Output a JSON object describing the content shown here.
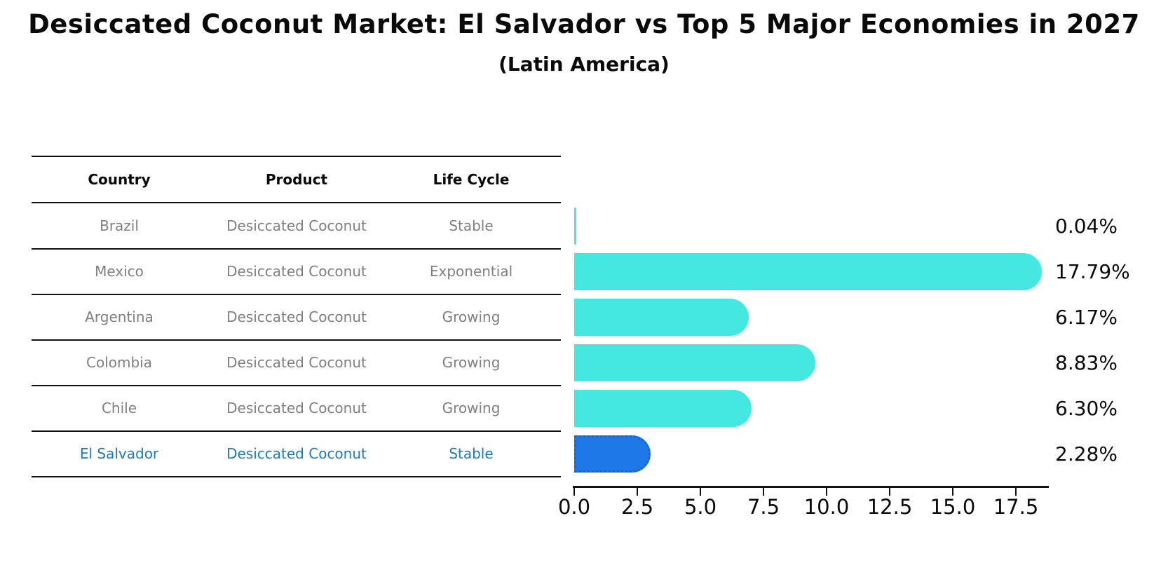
{
  "header": {
    "title": "Desiccated Coconut Market: El Salvador vs Top 5 Major Economies in 2027",
    "subtitle": "(Latin America)"
  },
  "table": {
    "columns": [
      "Country",
      "Product",
      "Life Cycle"
    ],
    "rows": [
      {
        "country": "Brazil",
        "product": "Desiccated Coconut",
        "life_cycle": "Stable",
        "highlight": false
      },
      {
        "country": "Mexico",
        "product": "Desiccated Coconut",
        "life_cycle": "Exponential",
        "highlight": false
      },
      {
        "country": "Argentina",
        "product": "Desiccated Coconut",
        "life_cycle": "Growing",
        "highlight": false
      },
      {
        "country": "Colombia",
        "product": "Desiccated Coconut",
        "life_cycle": "Growing",
        "highlight": false
      },
      {
        "country": "Chile",
        "product": "Desiccated Coconut",
        "life_cycle": "Growing",
        "highlight": false
      },
      {
        "country": "El Salvador",
        "product": "Desiccated Coconut",
        "life_cycle": "Stable",
        "highlight": true
      }
    ]
  },
  "chart_data": {
    "type": "bar",
    "orientation": "horizontal",
    "title": "Desiccated Coconut Market: El Salvador vs Top 5 Major Economies in 2027",
    "subtitle": "(Latin America)",
    "categories": [
      "Brazil",
      "Mexico",
      "Argentina",
      "Colombia",
      "Chile",
      "El Salvador"
    ],
    "values": [
      0.04,
      17.79,
      6.17,
      8.83,
      6.3,
      2.28
    ],
    "value_labels": [
      "0.04%",
      "17.79%",
      "6.17%",
      "8.83%",
      "6.30%",
      "2.28%"
    ],
    "x_ticks": [
      "0.0",
      "2.5",
      "5.0",
      "7.5",
      "10.0",
      "12.5",
      "15.0",
      "17.5"
    ],
    "xlim": [
      0,
      18.8
    ],
    "grid": false,
    "legend": "none",
    "bar_color": "#45e8e1",
    "highlight_bar_color": "#1e78e8",
    "highlight_index": 5,
    "highlight_text_color": "#1f78c1"
  }
}
